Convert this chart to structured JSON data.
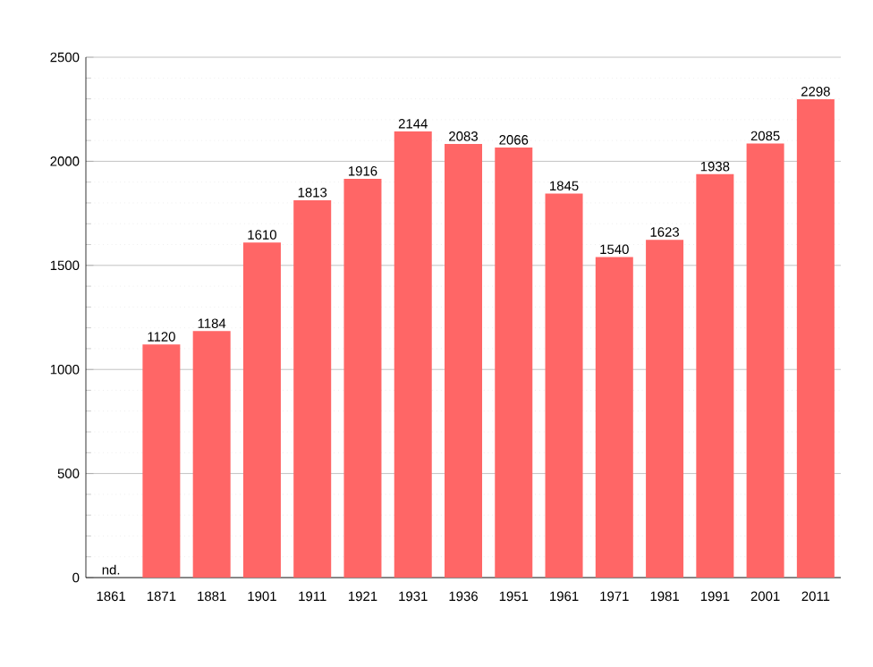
{
  "chart_data": {
    "type": "bar",
    "categories": [
      "1861",
      "1871",
      "1881",
      "1901",
      "1911",
      "1921",
      "1931",
      "1936",
      "1951",
      "1961",
      "1971",
      "1981",
      "1991",
      "2001",
      "2011"
    ],
    "values": [
      null,
      1120,
      1184,
      1610,
      1813,
      1916,
      2144,
      2083,
      2066,
      1845,
      1540,
      1623,
      1938,
      2085,
      2298
    ],
    "value_labels": [
      "nd.",
      "1120",
      "1184",
      "1610",
      "1813",
      "1916",
      "2144",
      "2083",
      "2066",
      "1845",
      "1540",
      "1623",
      "1938",
      "2085",
      "2298"
    ],
    "color": "#ff6666",
    "ylim": [
      0,
      2500
    ],
    "yticks": [
      0,
      500,
      1000,
      1500,
      2000,
      2500
    ],
    "grid": "y"
  }
}
